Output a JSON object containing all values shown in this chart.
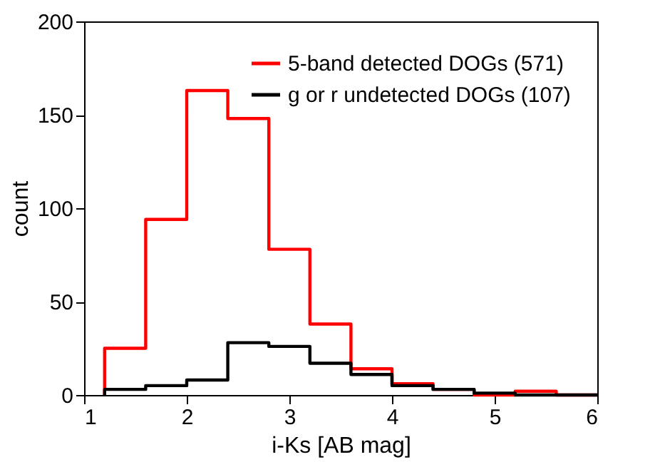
{
  "chart_data": {
    "type": "histogram",
    "xlabel": "i-Ks [AB mag]",
    "ylabel": "count",
    "bins": [
      1.2,
      1.6,
      2.0,
      2.4,
      2.8,
      3.2,
      3.6,
      4.0,
      4.4,
      4.8,
      5.2,
      5.6,
      6.0
    ],
    "series": [
      {
        "name": "5-band detected DOGs (571)",
        "color": "#ff0000",
        "values": [
          25,
          94,
          163,
          148,
          78,
          38,
          14,
          6,
          3,
          0,
          2,
          0
        ]
      },
      {
        "name": "g or r undetected DOGs (107)",
        "color": "#000000",
        "values": [
          3,
          5,
          8,
          28,
          26,
          17,
          11,
          5,
          3,
          1,
          0,
          0
        ]
      }
    ],
    "xlim": [
      1,
      6
    ],
    "xticks": [
      1,
      2,
      3,
      4,
      5,
      6
    ],
    "ylim": [
      0,
      200
    ],
    "yticks": [
      0,
      50,
      100,
      150,
      200
    ],
    "legend": "top right",
    "grid": false
  }
}
